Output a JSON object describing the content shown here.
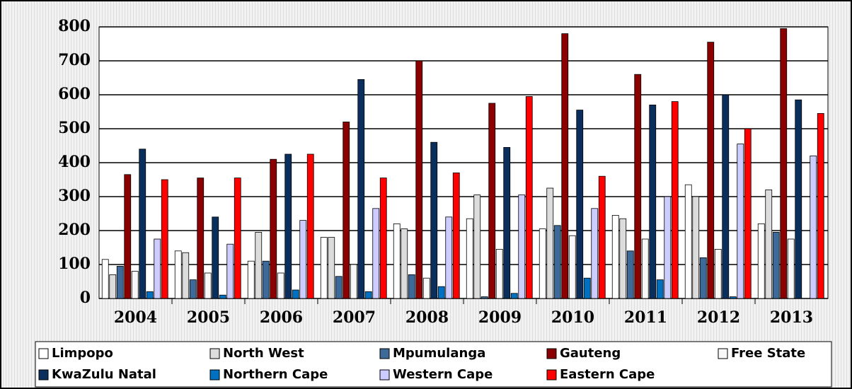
{
  "chart_data": {
    "type": "bar",
    "categories": [
      "2004",
      "2005",
      "2006",
      "2007",
      "2008",
      "2009",
      "2010",
      "2011",
      "2012",
      "2013"
    ],
    "series": [
      {
        "name": "Limpopo",
        "color": "#ffffff",
        "values": [
          115,
          140,
          110,
          180,
          220,
          235,
          205,
          245,
          335,
          220
        ]
      },
      {
        "name": "North West",
        "color": "#dcdcdc",
        "values": [
          70,
          135,
          195,
          180,
          205,
          305,
          325,
          235,
          300,
          320
        ]
      },
      {
        "name": "Mpumulanga",
        "color": "#3d6a99",
        "values": [
          95,
          55,
          110,
          65,
          70,
          5,
          215,
          140,
          120,
          195
        ]
      },
      {
        "name": "Gauteng",
        "color": "#8b0000",
        "values": [
          365,
          355,
          410,
          520,
          700,
          575,
          780,
          660,
          755,
          795
        ]
      },
      {
        "name": "Free State",
        "color": "#f8f8f8",
        "values": [
          80,
          75,
          75,
          100,
          60,
          145,
          185,
          175,
          145,
          175
        ]
      },
      {
        "name": "KwaZulu Natal",
        "color": "#0a2f5c",
        "values": [
          440,
          240,
          425,
          645,
          460,
          445,
          555,
          570,
          600,
          585
        ]
      },
      {
        "name": "Northern Cape",
        "color": "#0070c0",
        "values": [
          20,
          10,
          25,
          20,
          35,
          15,
          60,
          55,
          5,
          0
        ]
      },
      {
        "name": "Western Cape",
        "color": "#ccccff",
        "values": [
          175,
          160,
          230,
          265,
          240,
          305,
          265,
          300,
          455,
          420
        ]
      },
      {
        "name": "Eastern Cape",
        "color": "#ff0000",
        "values": [
          350,
          355,
          425,
          355,
          370,
          595,
          360,
          580,
          500,
          545
        ]
      }
    ],
    "ylim": [
      0,
      800
    ],
    "yticks": [
      0,
      100,
      200,
      300,
      400,
      500,
      600,
      700,
      800
    ],
    "grid": true,
    "legend": "bottom"
  }
}
